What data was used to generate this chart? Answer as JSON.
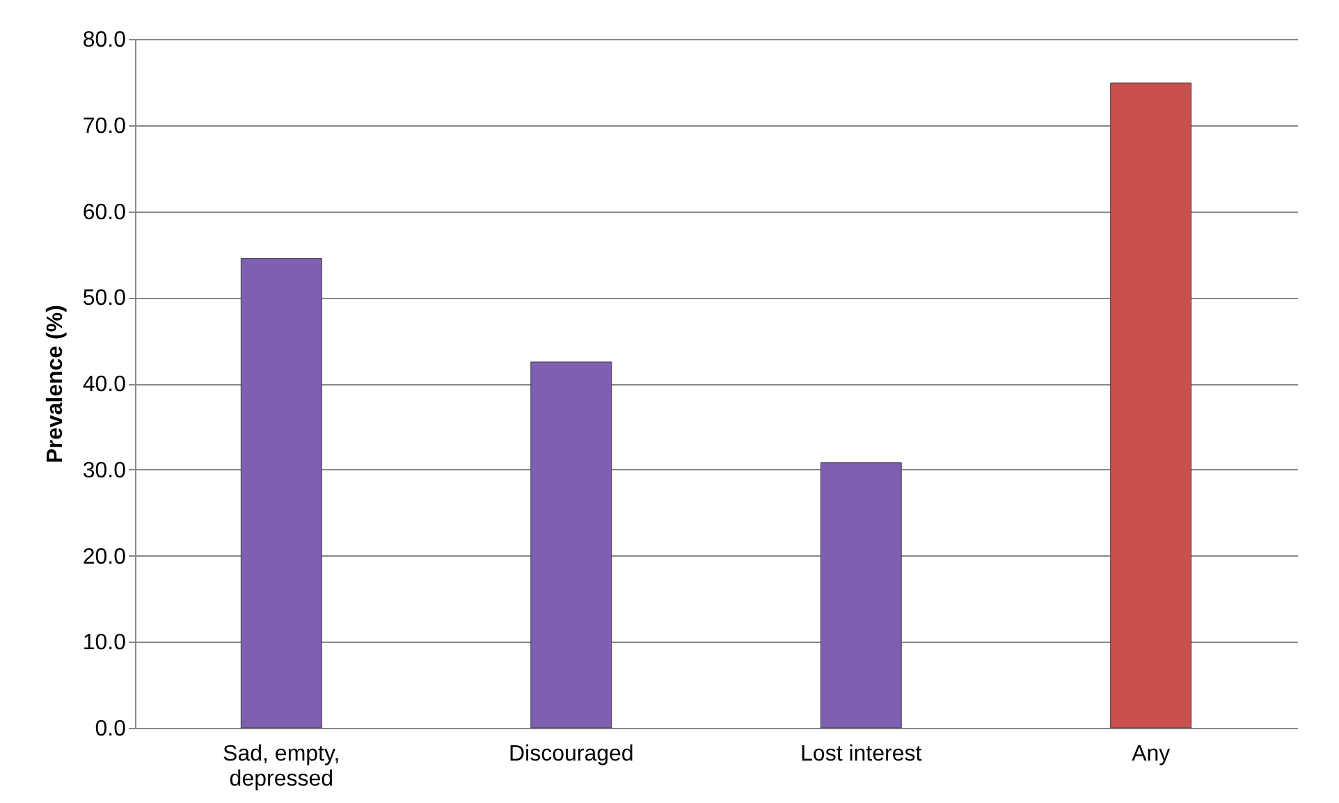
{
  "chart_data": {
    "type": "bar",
    "ylabel": "Prevalence (%)",
    "categories": [
      "Sad, empty,\ndepressed",
      "Discouraged",
      "Lost interest",
      "Any"
    ],
    "values": [
      54.5,
      42.5,
      30.8,
      74.9
    ],
    "colors": [
      "#7e5fb2",
      "#7e5fb2",
      "#7e5fb2",
      "#c9504d"
    ],
    "ylim": [
      0,
      80
    ],
    "yticks": [
      {
        "value": 0,
        "label": "0.0"
      },
      {
        "value": 10,
        "label": "10.0"
      },
      {
        "value": 20,
        "label": "20.0"
      },
      {
        "value": 30,
        "label": "30.0"
      },
      {
        "value": 40,
        "label": "40.0"
      },
      {
        "value": 50,
        "label": "50.0"
      },
      {
        "value": 60,
        "label": "60.0"
      },
      {
        "value": 70,
        "label": "70.0"
      },
      {
        "value": 80,
        "label": "80.0"
      }
    ],
    "grid": "y"
  }
}
